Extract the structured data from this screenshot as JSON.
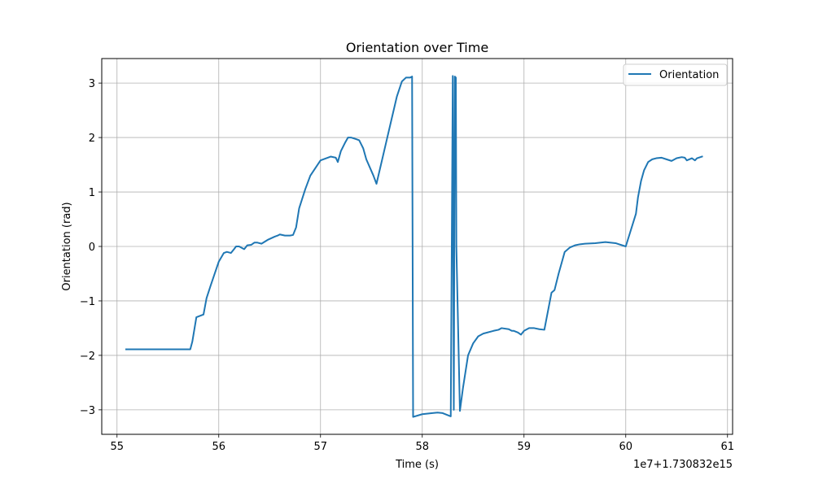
{
  "chart_data": {
    "type": "line",
    "title": "Orientation over Time",
    "xlabel": "Time (s)",
    "ylabel": "Orientation (rad)",
    "x_offset_label": "1e7+1.730832e15",
    "xlim": [
      54.85,
      61.05
    ],
    "ylim": [
      -3.45,
      3.45
    ],
    "x_ticks": [
      55,
      56,
      57,
      58,
      59,
      60,
      61
    ],
    "x_tick_labels": [
      "55",
      "56",
      "57",
      "58",
      "59",
      "60",
      "61"
    ],
    "y_ticks": [
      -3,
      -2,
      -1,
      0,
      1,
      2,
      3
    ],
    "y_tick_labels": [
      "−3",
      "−2",
      "−1",
      "0",
      "1",
      "2",
      "3"
    ],
    "grid": true,
    "legend_position": "top-right",
    "series": [
      {
        "name": "Orientation",
        "color": "#1f77b4",
        "x": [
          55.09,
          55.72,
          55.74,
          55.78,
          55.85,
          55.88,
          55.92,
          55.96,
          56.0,
          56.05,
          56.08,
          56.12,
          56.15,
          56.17,
          56.2,
          56.25,
          56.28,
          56.32,
          56.35,
          56.38,
          56.42,
          56.48,
          56.55,
          56.58,
          56.6,
          56.65,
          56.7,
          56.73,
          56.76,
          56.79,
          56.85,
          56.9,
          57.0,
          57.1,
          57.15,
          57.17,
          57.2,
          57.24,
          57.27,
          57.3,
          57.35,
          57.38,
          57.42,
          57.45,
          57.52,
          57.55,
          57.6,
          57.65,
          57.7,
          57.75,
          57.8,
          57.84,
          57.88,
          57.9,
          57.905,
          57.91,
          58.0,
          58.1,
          58.15,
          58.2,
          58.28,
          58.3,
          58.305,
          58.31,
          58.32,
          58.33,
          58.335,
          58.37,
          58.4,
          58.45,
          58.5,
          58.55,
          58.6,
          58.7,
          58.75,
          58.78,
          58.85,
          58.88,
          58.9,
          58.94,
          58.97,
          59.0,
          59.05,
          59.1,
          59.15,
          59.2,
          59.27,
          59.3,
          59.34,
          59.37,
          59.4,
          59.45,
          59.5,
          59.55,
          59.6,
          59.7,
          59.8,
          59.9,
          60.0,
          60.1,
          60.12,
          60.15,
          60.18,
          60.22,
          60.26,
          60.3,
          60.35,
          60.4,
          60.45,
          60.5,
          60.55,
          60.58,
          60.6,
          60.65,
          60.68,
          60.7,
          60.75
        ],
        "y": [
          -1.89,
          -1.89,
          -1.75,
          -1.3,
          -1.25,
          -0.95,
          -0.72,
          -0.5,
          -0.28,
          -0.12,
          -0.1,
          -0.12,
          -0.05,
          0.0,
          0.0,
          -0.05,
          0.02,
          0.03,
          0.07,
          0.07,
          0.05,
          0.12,
          0.18,
          0.2,
          0.22,
          0.2,
          0.2,
          0.21,
          0.35,
          0.7,
          1.05,
          1.3,
          1.58,
          1.65,
          1.63,
          1.55,
          1.75,
          1.9,
          2.0,
          2.0,
          1.97,
          1.95,
          1.8,
          1.6,
          1.3,
          1.15,
          1.55,
          1.95,
          2.35,
          2.75,
          3.03,
          3.1,
          3.1,
          3.12,
          0.0,
          -3.13,
          -3.08,
          -3.06,
          -3.05,
          -3.06,
          -3.12,
          3.13,
          0.0,
          -3.0,
          3.12,
          3.1,
          0.0,
          -3.02,
          -2.6,
          -2.0,
          -1.78,
          -1.65,
          -1.6,
          -1.55,
          -1.53,
          -1.5,
          -1.52,
          -1.55,
          -1.55,
          -1.58,
          -1.62,
          -1.55,
          -1.5,
          -1.5,
          -1.52,
          -1.53,
          -0.85,
          -0.8,
          -0.5,
          -0.3,
          -0.1,
          -0.02,
          0.02,
          0.04,
          0.05,
          0.06,
          0.08,
          0.06,
          0.0,
          0.6,
          0.9,
          1.2,
          1.4,
          1.55,
          1.6,
          1.62,
          1.63,
          1.6,
          1.57,
          1.62,
          1.64,
          1.63,
          1.58,
          1.62,
          1.58,
          1.62,
          1.65
        ]
      }
    ]
  }
}
